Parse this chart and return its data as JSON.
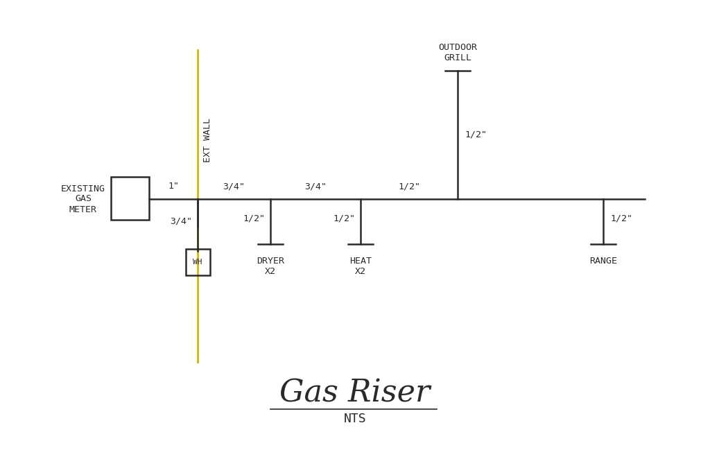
{
  "background_color": "#ffffff",
  "line_color": "#2a2a2a",
  "wall_color": "#d4b800",
  "title": "Gas Riser",
  "subtitle": "NTS",
  "title_fontsize": 32,
  "subtitle_fontsize": 13,
  "label_fontsize": 10,
  "ext_wall_label": "EXT WALL",
  "existing_gas_meter_label": "EXISTING\nGAS\nMETER",
  "wh_label": "WH",
  "outdoor_grill_label": "OUTDOOR\nGRILL",
  "dryer_label": "DRYER\nX2",
  "heat_label": "HEAT\nX2",
  "range_label": "RANGE",
  "pipe_lw": 1.8,
  "wall_lw": 2.0,
  "dim_labels": {
    "meter_to_wall": "1\"",
    "main_seg1": "3/4\"",
    "main_seg2": "3/4\"",
    "main_seg3": "1/2\"",
    "wh_drop": "3/4\"",
    "dryer_drop": "1/2\"",
    "heat_drop": "1/2\"",
    "grill_riser": "1/2\"",
    "range_drop": "1/2\""
  }
}
